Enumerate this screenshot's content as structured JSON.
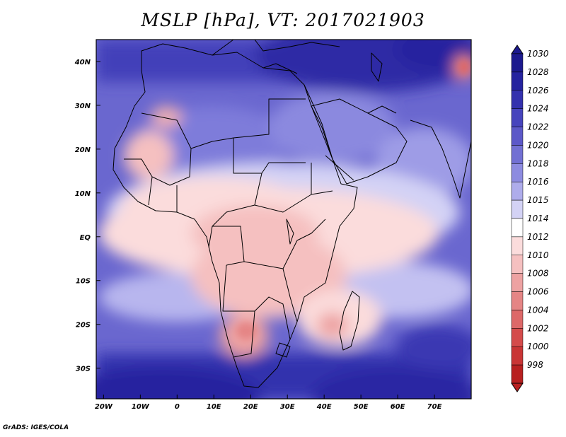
{
  "title": "MSLP [hPa], VT: 2017021903",
  "credit": "GrADS: IGES/COLA",
  "map": {
    "lat_labels": [
      "40N",
      "30N",
      "20N",
      "10N",
      "EQ",
      "10S",
      "20S",
      "30S"
    ],
    "lat_values": [
      40,
      30,
      20,
      10,
      0,
      -10,
      -20,
      -30
    ],
    "lon_labels": [
      "20W",
      "10W",
      "0",
      "10E",
      "20E",
      "30E",
      "40E",
      "50E",
      "60E",
      "70E"
    ],
    "lon_values": [
      -20,
      -10,
      0,
      10,
      20,
      30,
      40,
      50,
      60,
      70
    ],
    "lon_range": [
      -22,
      80
    ],
    "lat_range": [
      -37,
      45
    ]
  },
  "colorbar": {
    "levels": [
      "1030",
      "1028",
      "1026",
      "1024",
      "1022",
      "1020",
      "1018",
      "1016",
      "1015",
      "1014",
      "1012",
      "1010",
      "1008",
      "1006",
      "1004",
      "1002",
      "1000",
      "998"
    ],
    "colors": [
      "#1c1a8e",
      "#25239f",
      "#3431ae",
      "#4744bd",
      "#5c58c8",
      "#7270d3",
      "#8d8be0",
      "#aeaceb",
      "#d3d2f5",
      "#ffffff",
      "#fbdcdc",
      "#f5c0c0",
      "#eda2a2",
      "#e58585",
      "#dd6868",
      "#d44b4b",
      "#c93535",
      "#b82020"
    ]
  }
}
